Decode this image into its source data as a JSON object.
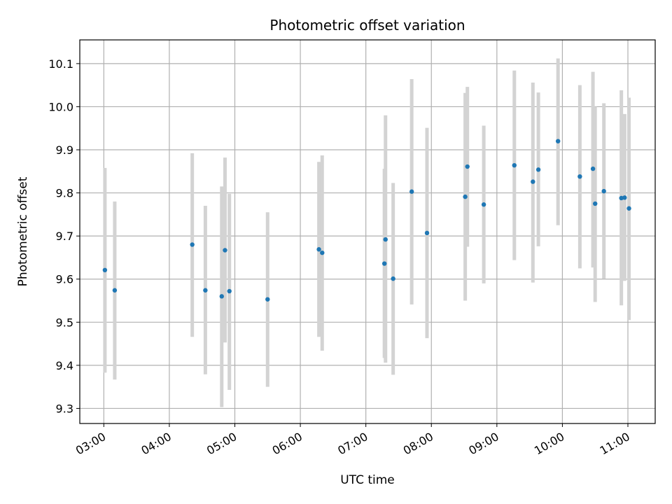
{
  "chart_data": {
    "type": "scatter",
    "title": "Photometric offset variation",
    "xlabel": "UTC time",
    "ylabel": "Photometric offset",
    "x_axis": {
      "kind": "time",
      "range": [
        "02:38",
        "11:25"
      ],
      "ticks": [
        "03:00",
        "04:00",
        "05:00",
        "06:00",
        "07:00",
        "08:00",
        "09:00",
        "10:00",
        "11:00"
      ]
    },
    "y_axis": {
      "range": [
        9.265,
        10.155
      ],
      "ticks": [
        "9.3",
        "9.4",
        "9.5",
        "9.6",
        "9.7",
        "9.8",
        "9.9",
        "10.0",
        "10.1"
      ]
    },
    "grid": true,
    "marker_color": "#1f77b4",
    "errorbar_color": "#d3d3d3",
    "series": [
      {
        "points": [
          {
            "x": "03:01",
            "y": 9.621,
            "low": 9.383,
            "high": 9.858
          },
          {
            "x": "03:10",
            "y": 9.574,
            "low": 9.367,
            "high": 9.78
          },
          {
            "x": "04:21",
            "y": 9.68,
            "low": 9.466,
            "high": 9.892
          },
          {
            "x": "04:33",
            "y": 9.574,
            "low": 9.379,
            "high": 9.77
          },
          {
            "x": "04:48",
            "y": 9.56,
            "low": 9.303,
            "high": 9.815
          },
          {
            "x": "04:51",
            "y": 9.667,
            "low": 9.453,
            "high": 9.882
          },
          {
            "x": "04:55",
            "y": 9.572,
            "low": 9.343,
            "high": 9.798
          },
          {
            "x": "05:30",
            "y": 9.553,
            "low": 9.35,
            "high": 9.755
          },
          {
            "x": "06:17",
            "y": 9.669,
            "low": 9.466,
            "high": 9.872
          },
          {
            "x": "06:20",
            "y": 9.661,
            "low": 9.434,
            "high": 9.887
          },
          {
            "x": "07:17",
            "y": 9.636,
            "low": 9.417,
            "high": 9.856
          },
          {
            "x": "07:18",
            "y": 9.692,
            "low": 9.406,
            "high": 9.98
          },
          {
            "x": "07:25",
            "y": 9.601,
            "low": 9.378,
            "high": 9.823
          },
          {
            "x": "07:42",
            "y": 9.803,
            "low": 9.541,
            "high": 10.064
          },
          {
            "x": "07:56",
            "y": 9.707,
            "low": 9.463,
            "high": 9.951
          },
          {
            "x": "08:31",
            "y": 9.791,
            "low": 9.55,
            "high": 10.032
          },
          {
            "x": "08:33",
            "y": 9.861,
            "low": 9.675,
            "high": 10.046
          },
          {
            "x": "08:48",
            "y": 9.773,
            "low": 9.59,
            "high": 9.956
          },
          {
            "x": "09:16",
            "y": 9.864,
            "low": 9.644,
            "high": 10.084
          },
          {
            "x": "09:33",
            "y": 9.826,
            "low": 9.592,
            "high": 10.056
          },
          {
            "x": "09:38",
            "y": 9.854,
            "low": 9.676,
            "high": 10.033
          },
          {
            "x": "09:56",
            "y": 9.92,
            "low": 9.725,
            "high": 10.112
          },
          {
            "x": "10:16",
            "y": 9.838,
            "low": 9.625,
            "high": 10.05
          },
          {
            "x": "10:28",
            "y": 9.856,
            "low": 9.627,
            "high": 10.081
          },
          {
            "x": "10:30",
            "y": 9.775,
            "low": 9.547,
            "high": 10.0
          },
          {
            "x": "10:38",
            "y": 9.804,
            "low": 9.601,
            "high": 10.008
          },
          {
            "x": "10:54",
            "y": 9.788,
            "low": 9.539,
            "high": 10.038
          },
          {
            "x": "10:57",
            "y": 9.789,
            "low": 9.596,
            "high": 9.983
          },
          {
            "x": "11:01",
            "y": 9.764,
            "low": 9.505,
            "high": 10.021
          }
        ]
      }
    ]
  }
}
